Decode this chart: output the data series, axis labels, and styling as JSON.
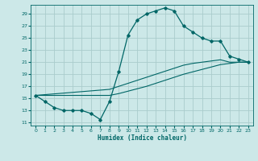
{
  "xlabel": "Humidex (Indice chaleur)",
  "bg_color": "#cce8e8",
  "grid_color": "#aacccc",
  "line_color": "#006666",
  "xlim": [
    -0.5,
    23.5
  ],
  "ylim": [
    10.5,
    30.5
  ],
  "yticks": [
    11,
    13,
    15,
    17,
    19,
    21,
    23,
    25,
    27,
    29
  ],
  "xticks": [
    0,
    1,
    2,
    3,
    4,
    5,
    6,
    7,
    8,
    9,
    10,
    11,
    12,
    13,
    14,
    15,
    16,
    17,
    18,
    19,
    20,
    21,
    22,
    23
  ],
  "series1_x": [
    0,
    1,
    2,
    3,
    4,
    5,
    6,
    7,
    8,
    9,
    10,
    11,
    12,
    13,
    14,
    15,
    16,
    17,
    18,
    19,
    20,
    21,
    22,
    23
  ],
  "series1_y": [
    15.5,
    14.5,
    13.5,
    13.0,
    13.0,
    13.0,
    12.5,
    11.5,
    14.5,
    19.5,
    25.5,
    28.0,
    29.0,
    29.5,
    30.0,
    29.5,
    27.0,
    26.0,
    25.0,
    24.5,
    24.5,
    22.0,
    21.5,
    21.0
  ],
  "series2_x": [
    0,
    8,
    9,
    10,
    11,
    12,
    13,
    14,
    15,
    16,
    17,
    18,
    19,
    20,
    21,
    22,
    23
  ],
  "series2_y": [
    15.5,
    16.5,
    17.0,
    17.5,
    18.0,
    18.5,
    19.0,
    19.5,
    20.0,
    20.5,
    20.8,
    21.0,
    21.2,
    21.4,
    21.0,
    21.0,
    21.0
  ],
  "series3_x": [
    0,
    8,
    9,
    10,
    11,
    12,
    13,
    14,
    15,
    16,
    17,
    18,
    19,
    20,
    21,
    22,
    23
  ],
  "series3_y": [
    15.5,
    15.5,
    15.8,
    16.2,
    16.6,
    17.0,
    17.5,
    18.0,
    18.5,
    19.0,
    19.4,
    19.8,
    20.2,
    20.6,
    20.8,
    21.0,
    21.0
  ]
}
